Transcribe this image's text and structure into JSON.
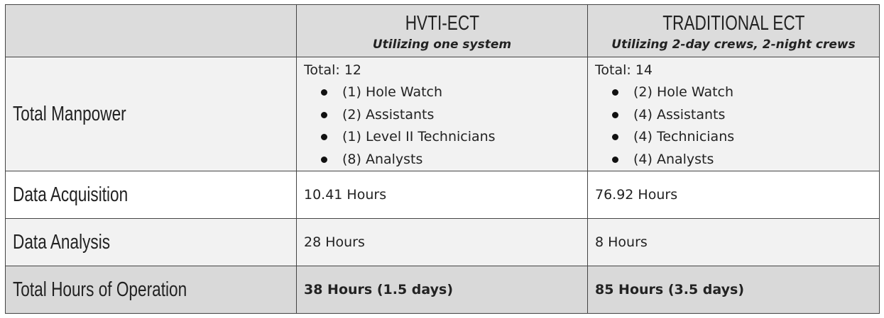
{
  "columns": [
    {
      "title": "",
      "subtitle": ""
    },
    {
      "title": "HVTI-ECT",
      "subtitle": "Utilizing one system"
    },
    {
      "title": "TRADITIONAL ECT",
      "subtitle": "Utilizing 2-day crews, 2-night crews"
    }
  ],
  "rows": {
    "manpower": {
      "label": "Total Manpower",
      "hvti": {
        "total": "Total: 12",
        "items": [
          "(1) Hole Watch",
          "(2) Assistants",
          "(1) Level II Technicians",
          "(8) Analysts"
        ]
      },
      "traditional": {
        "total": "Total: 14",
        "items": [
          "(2) Hole Watch",
          "(4) Assistants",
          "(4) Technicians",
          "(4) Analysts"
        ]
      }
    },
    "acquisition": {
      "label": "Data Acquisition",
      "hvti": "10.41 Hours",
      "traditional": "76.92 Hours"
    },
    "analysis": {
      "label": "Data Analysis",
      "hvti": "28 Hours",
      "traditional": "8 Hours"
    },
    "total": {
      "label": "Total Hours of Operation",
      "hvti": "38 Hours (1.5 days)",
      "traditional": "85 Hours (3.5 days)"
    }
  }
}
